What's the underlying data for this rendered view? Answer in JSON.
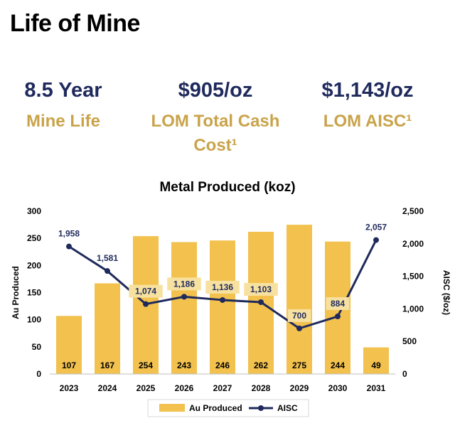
{
  "page": {
    "title": "Life of Mine"
  },
  "kpis": [
    {
      "value": "8.5 Year",
      "label": "Mine Life"
    },
    {
      "value": "$905/oz",
      "label_line1": "LOM Total Cash",
      "label_line2": "Cost¹"
    },
    {
      "value": "$1,143/oz",
      "label": "LOM AISC¹"
    }
  ],
  "colors": {
    "bar": "#f2c14e",
    "bar_label_bg": "#f7e1a0",
    "line": "#1f2a5c",
    "kpi_value": "#1f2a5c",
    "kpi_label": "#c9a34a"
  },
  "chart_data": {
    "type": "bar+line",
    "title": "Metal Produced (koz)",
    "categories": [
      "2023",
      "2024",
      "2025",
      "2026",
      "2027",
      "2028",
      "2029",
      "2030",
      "2031"
    ],
    "series": [
      {
        "name": "Au Produced",
        "type": "bar",
        "axis": "left",
        "values": [
          107,
          167,
          254,
          243,
          246,
          262,
          275,
          244,
          49
        ]
      },
      {
        "name": "AISC",
        "type": "line",
        "axis": "right",
        "values": [
          1958,
          1581,
          1074,
          1186,
          1136,
          1103,
          700,
          884,
          2057
        ]
      }
    ],
    "ylabel_left": "Au Produced",
    "ylabel_right": "AISC ($/oz)",
    "ylim_left": [
      0,
      300
    ],
    "ylim_right": [
      0,
      2500
    ],
    "yticks_left": [
      "0",
      "50",
      "100",
      "150",
      "200",
      "250",
      "300"
    ],
    "yticks_right": [
      "0",
      "500",
      "1,000",
      "1,500",
      "2,000",
      "2,500"
    ],
    "bar_labels": [
      "107",
      "167",
      "254",
      "243",
      "246",
      "262",
      "275",
      "244",
      "49"
    ],
    "line_labels": [
      "1,958",
      "1,581",
      "1,074",
      "1,186",
      "1,136",
      "1,103",
      "700",
      "884",
      "2,057"
    ],
    "grid": false,
    "legend": "bottom"
  }
}
